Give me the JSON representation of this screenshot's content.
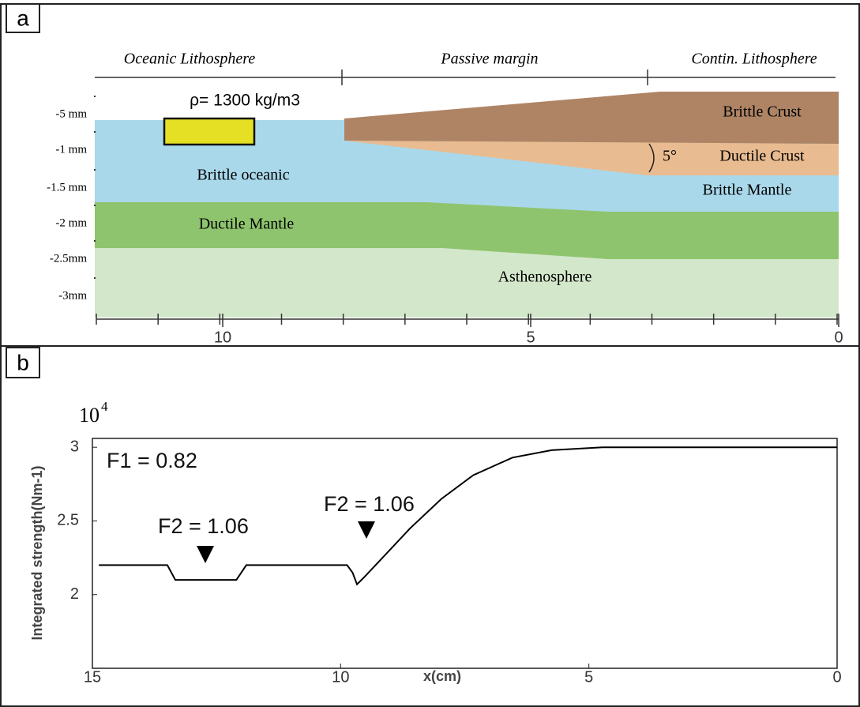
{
  "panel_a": {
    "label": "a",
    "headers": [
      "Oceanic Lithosphere",
      "Passive margin",
      "Contin. Lithosphere"
    ],
    "density_label": "ρ= 1300 kg/m3",
    "layers": [
      "Brittle Crust",
      "Ductile Crust",
      "Brittle Mantle",
      "Brittle oceanic",
      "Ductile Mantle",
      "Asthenosphere"
    ],
    "angle_label": "5°",
    "depth_ticks": [
      "-5 mm",
      "-1 mm",
      "-1.5 mm",
      "-2 mm",
      "-2.5mm",
      "-3mm"
    ],
    "x_ticks": [
      10,
      5,
      0
    ]
  },
  "chart_data": {
    "type": "line",
    "label": "b",
    "y_scale_base": "10",
    "y_scale_exponent": "4",
    "xlabel": "x(cm)",
    "ylabel": "Integrated strength(Nm-1)",
    "x": [
      14.87,
      13.49,
      13.33,
      12.1,
      11.9,
      9.87,
      9.76,
      9.67,
      9.52,
      9.24,
      8.6,
      7.97,
      7.33,
      6.54,
      5.75,
      4.71,
      0
    ],
    "values": [
      2.2,
      2.2,
      2.1,
      2.1,
      2.2,
      2.2,
      2.15,
      2.07,
      2.12,
      2.22,
      2.45,
      2.65,
      2.81,
      2.93,
      2.98,
      3.0,
      3.0
    ],
    "color": "#000000",
    "xlim": [
      15,
      0
    ],
    "xticks": [
      15,
      10,
      5,
      0
    ],
    "ylim": [
      1.5,
      3.06
    ],
    "yticks": [
      2,
      2.5,
      3
    ],
    "annotations": [
      "F1 = 0.82",
      "F2 = 1.06",
      "F2 = 1.06"
    ]
  }
}
